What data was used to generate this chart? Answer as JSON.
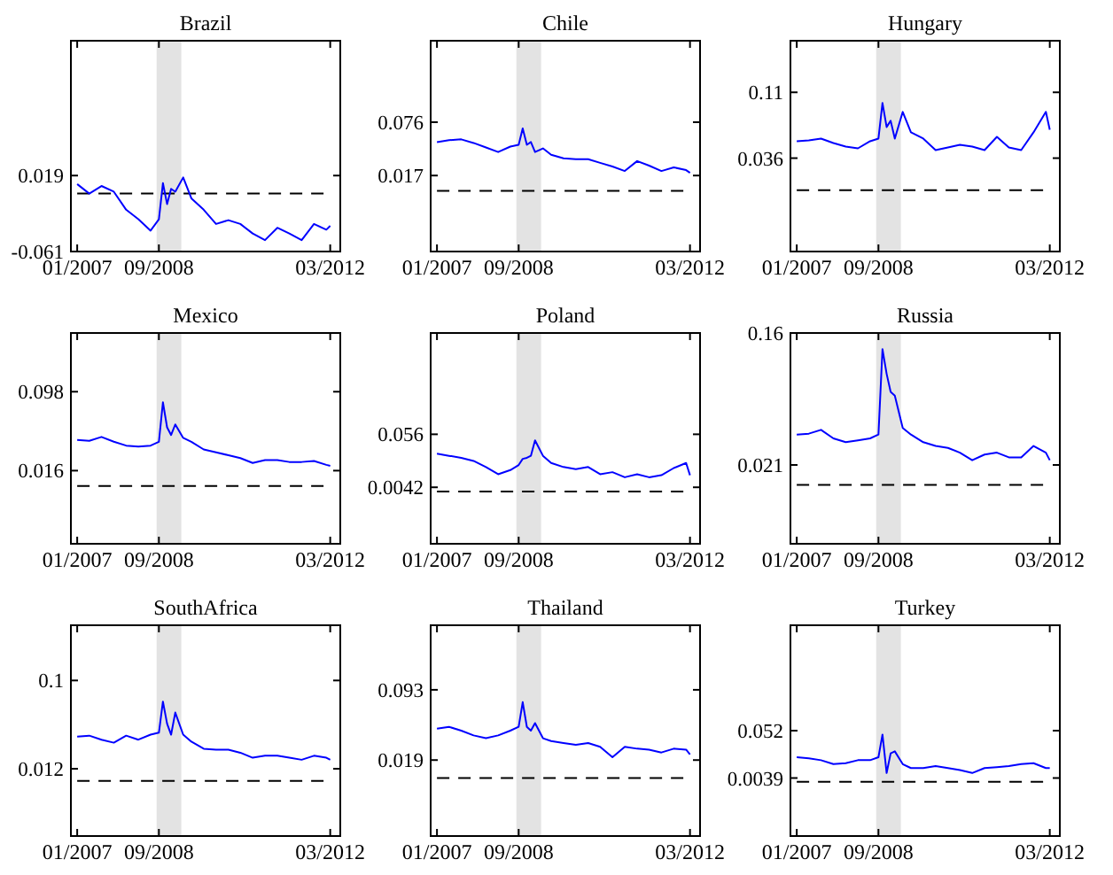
{
  "chart_data": [
    {
      "type": "line",
      "title": "Brazil",
      "x": [
        "2007-01",
        "2007-04",
        "2007-07",
        "2007-10",
        "2008-01",
        "2008-04",
        "2008-07",
        "2008-09",
        "2008-10",
        "2008-11",
        "2008-12",
        "2009-01",
        "2009-03",
        "2009-05",
        "2009-08",
        "2009-11",
        "2010-02",
        "2010-05",
        "2010-08",
        "2010-11",
        "2011-02",
        "2011-05",
        "2011-08",
        "2011-11",
        "2012-02",
        "2012-03"
      ],
      "xlim": [
        "2006-11-15",
        "2012-05-15"
      ],
      "xticks": [
        {
          "value": "2007-01",
          "label": "01/2007"
        },
        {
          "value": "2008-09",
          "label": "09/2008"
        },
        {
          "value": "2012-03",
          "label": "03/2012"
        }
      ],
      "ylim": [
        -0.061,
        0.161
      ],
      "yticks": [
        {
          "value": -0.061,
          "label": "-0.061"
        },
        0.019
      ],
      "series": [
        {
          "color": "#0000ff",
          "values": [
            0.01,
            0.0,
            0.008,
            0.002,
            -0.017,
            -0.027,
            -0.039,
            -0.027,
            0.011,
            -0.011,
            0.005,
            0.002,
            0.017,
            -0.005,
            -0.017,
            -0.032,
            -0.028,
            -0.032,
            -0.042,
            -0.049,
            -0.036,
            -0.042,
            -0.049,
            -0.032,
            -0.038,
            -0.034
          ]
        }
      ],
      "bands": [
        {
          "axis": "x",
          "from": "2008-08-15",
          "to": "2009-02-15",
          "color": "#e3e3e3"
        }
      ],
      "ref_lines": [
        {
          "axis": "y",
          "value": 0,
          "color": "#000000",
          "line_style": "dashed"
        }
      ]
    },
    {
      "type": "line",
      "title": "Chile",
      "x": [
        "2007-01",
        "2007-04",
        "2007-07",
        "2007-10",
        "2008-01",
        "2008-04",
        "2008-07",
        "2008-09",
        "2008-10",
        "2008-11",
        "2008-12",
        "2009-01",
        "2009-03",
        "2009-05",
        "2009-08",
        "2009-11",
        "2010-02",
        "2010-05",
        "2010-08",
        "2010-11",
        "2011-02",
        "2011-05",
        "2011-08",
        "2011-11",
        "2012-02",
        "2012-03"
      ],
      "xlim": [
        "2006-11-15",
        "2012-05-15"
      ],
      "xticks": [
        {
          "value": "2007-01",
          "label": "01/2007"
        },
        {
          "value": "2008-09",
          "label": "09/2008"
        },
        {
          "value": "2012-03",
          "label": "03/2012"
        }
      ],
      "ylim": [
        -0.067,
        0.166
      ],
      "yticks": [
        0.017,
        0.076
      ],
      "series": [
        {
          "color": "#0000ff",
          "values": [
            0.054,
            0.056,
            0.057,
            0.053,
            0.048,
            0.043,
            0.049,
            0.051,
            0.069,
            0.051,
            0.054,
            0.043,
            0.047,
            0.04,
            0.036,
            0.035,
            0.035,
            0.031,
            0.027,
            0.022,
            0.033,
            0.028,
            0.022,
            0.026,
            0.023,
            0.02
          ]
        }
      ],
      "bands": [
        {
          "axis": "x",
          "from": "2008-08-15",
          "to": "2009-02-15",
          "color": "#e3e3e3"
        }
      ],
      "ref_lines": [
        {
          "axis": "y",
          "value": 0,
          "color": "#000000",
          "line_style": "dashed"
        }
      ]
    },
    {
      "type": "line",
      "title": "Hungary",
      "x": [
        "2007-01",
        "2007-04",
        "2007-07",
        "2007-10",
        "2008-01",
        "2008-04",
        "2008-07",
        "2008-09",
        "2008-10",
        "2008-11",
        "2008-12",
        "2009-01",
        "2009-03",
        "2009-05",
        "2009-08",
        "2009-11",
        "2010-02",
        "2010-05",
        "2010-08",
        "2010-11",
        "2011-02",
        "2011-05",
        "2011-08",
        "2011-11",
        "2012-02",
        "2012-03"
      ],
      "xlim": [
        "2006-11-15",
        "2012-05-15"
      ],
      "xticks": [
        {
          "value": "2007-01",
          "label": "01/2007"
        },
        {
          "value": "2008-09",
          "label": "09/2008"
        },
        {
          "value": "2012-03",
          "label": "03/2012"
        }
      ],
      "ylim": [
        -0.069,
        0.168
      ],
      "yticks": [
        0.036,
        0.11
      ],
      "series": [
        {
          "color": "#0000ff",
          "values": [
            0.055,
            0.056,
            0.058,
            0.053,
            0.049,
            0.047,
            0.055,
            0.058,
            0.098,
            0.071,
            0.078,
            0.058,
            0.088,
            0.065,
            0.058,
            0.045,
            0.048,
            0.051,
            0.049,
            0.045,
            0.06,
            0.048,
            0.045,
            0.065,
            0.088,
            0.068
          ]
        }
      ],
      "bands": [
        {
          "axis": "x",
          "from": "2008-08-15",
          "to": "2009-02-15",
          "color": "#e3e3e3"
        }
      ],
      "ref_lines": [
        {
          "axis": "y",
          "value": 0,
          "color": "#000000",
          "line_style": "dashed"
        }
      ]
    },
    {
      "type": "line",
      "title": "Mexico",
      "x": [
        "2007-01",
        "2007-04",
        "2007-07",
        "2007-10",
        "2008-01",
        "2008-04",
        "2008-07",
        "2008-09",
        "2008-10",
        "2008-11",
        "2008-12",
        "2009-01",
        "2009-03",
        "2009-05",
        "2009-08",
        "2009-11",
        "2010-02",
        "2010-05",
        "2010-08",
        "2010-11",
        "2011-02",
        "2011-05",
        "2011-08",
        "2011-11",
        "2012-02",
        "2012-03"
      ],
      "xlim": [
        "2006-11-15",
        "2012-05-15"
      ],
      "xticks": [
        {
          "value": "2007-01",
          "label": "01/2007"
        },
        {
          "value": "2008-09",
          "label": "09/2008"
        },
        {
          "value": "2012-03",
          "label": "03/2012"
        }
      ],
      "ylim": [
        -0.06,
        0.159
      ],
      "yticks": [
        0.016,
        0.098
      ],
      "series": [
        {
          "color": "#0000ff",
          "values": [
            0.048,
            0.047,
            0.051,
            0.046,
            0.042,
            0.041,
            0.042,
            0.046,
            0.087,
            0.061,
            0.053,
            0.064,
            0.05,
            0.046,
            0.038,
            0.035,
            0.032,
            0.029,
            0.024,
            0.027,
            0.027,
            0.025,
            0.025,
            0.026,
            0.022,
            0.021
          ]
        }
      ],
      "bands": [
        {
          "axis": "x",
          "from": "2008-08-15",
          "to": "2009-02-15",
          "color": "#e3e3e3"
        }
      ],
      "ref_lines": [
        {
          "axis": "y",
          "value": 0,
          "color": "#000000",
          "line_style": "dashed"
        }
      ]
    },
    {
      "type": "line",
      "title": "Poland",
      "x": [
        "2007-01",
        "2007-04",
        "2007-07",
        "2007-10",
        "2008-01",
        "2008-04",
        "2008-07",
        "2008-09",
        "2008-10",
        "2008-11",
        "2008-12",
        "2009-01",
        "2009-03",
        "2009-05",
        "2009-08",
        "2009-11",
        "2010-02",
        "2010-05",
        "2010-08",
        "2010-11",
        "2011-02",
        "2011-05",
        "2011-08",
        "2011-11",
        "2012-02",
        "2012-03"
      ],
      "xlim": [
        "2006-11-15",
        "2012-05-15"
      ],
      "xticks": [
        {
          "value": "2007-01",
          "label": "01/2007"
        },
        {
          "value": "2008-09",
          "label": "09/2008"
        },
        {
          "value": "2012-03",
          "label": "03/2012"
        }
      ],
      "ylim": [
        -0.051,
        0.155
      ],
      "yticks": [
        0.0042,
        0.056
      ],
      "series": [
        {
          "color": "#0000ff",
          "values": [
            0.037,
            0.035,
            0.033,
            0.03,
            0.024,
            0.017,
            0.021,
            0.026,
            0.032,
            0.033,
            0.035,
            0.05,
            0.035,
            0.028,
            0.024,
            0.022,
            0.024,
            0.017,
            0.019,
            0.014,
            0.017,
            0.014,
            0.016,
            0.023,
            0.028,
            0.016
          ]
        }
      ],
      "bands": [
        {
          "axis": "x",
          "from": "2008-08-15",
          "to": "2009-02-15",
          "color": "#e3e3e3"
        }
      ],
      "ref_lines": [
        {
          "axis": "y",
          "value": 0,
          "color": "#000000",
          "line_style": "dashed"
        }
      ]
    },
    {
      "type": "line",
      "title": "Russia",
      "x": [
        "2007-01",
        "2007-04",
        "2007-07",
        "2007-10",
        "2008-01",
        "2008-04",
        "2008-07",
        "2008-09",
        "2008-10",
        "2008-11",
        "2008-12",
        "2009-01",
        "2009-03",
        "2009-05",
        "2009-08",
        "2009-11",
        "2010-02",
        "2010-05",
        "2010-08",
        "2010-11",
        "2011-02",
        "2011-05",
        "2011-08",
        "2011-11",
        "2012-02",
        "2012-03"
      ],
      "xlim": [
        "2006-11-15",
        "2012-05-15"
      ],
      "xticks": [
        {
          "value": "2007-01",
          "label": "01/2007"
        },
        {
          "value": "2008-09",
          "label": "09/2008"
        },
        {
          "value": "2012-03",
          "label": "03/2012"
        }
      ],
      "ylim": [
        -0.062,
        0.16
      ],
      "yticks": [
        0.021,
        0.16
      ],
      "series": [
        {
          "color": "#0000ff",
          "values": [
            0.053,
            0.054,
            0.058,
            0.049,
            0.045,
            0.047,
            0.049,
            0.053,
            0.143,
            0.117,
            0.098,
            0.094,
            0.06,
            0.053,
            0.045,
            0.041,
            0.039,
            0.034,
            0.026,
            0.032,
            0.034,
            0.029,
            0.029,
            0.041,
            0.034,
            0.026
          ]
        }
      ],
      "bands": [
        {
          "axis": "x",
          "from": "2008-08-15",
          "to": "2009-02-15",
          "color": "#e3e3e3"
        }
      ],
      "ref_lines": [
        {
          "axis": "y",
          "value": 0,
          "color": "#000000",
          "line_style": "dashed"
        }
      ]
    },
    {
      "type": "line",
      "title": "SouthAfrica",
      "x": [
        "2007-01",
        "2007-04",
        "2007-07",
        "2007-10",
        "2008-01",
        "2008-04",
        "2008-07",
        "2008-09",
        "2008-10",
        "2008-11",
        "2008-12",
        "2009-01",
        "2009-03",
        "2009-05",
        "2009-08",
        "2009-11",
        "2010-02",
        "2010-05",
        "2010-08",
        "2010-11",
        "2011-02",
        "2011-05",
        "2011-08",
        "2011-11",
        "2012-02",
        "2012-03"
      ],
      "xlim": [
        "2006-11-15",
        "2012-05-15"
      ],
      "xticks": [
        {
          "value": "2007-01",
          "label": "01/2007"
        },
        {
          "value": "2008-09",
          "label": "09/2008"
        },
        {
          "value": "2012-03",
          "label": "03/2012"
        }
      ],
      "ylim": [
        -0.055,
        0.155
      ],
      "yticks": [
        0.012,
        0.1
      ],
      "series": [
        {
          "color": "#0000ff",
          "values": [
            0.044,
            0.045,
            0.041,
            0.038,
            0.045,
            0.041,
            0.046,
            0.048,
            0.079,
            0.057,
            0.046,
            0.068,
            0.046,
            0.039,
            0.032,
            0.031,
            0.031,
            0.028,
            0.023,
            0.025,
            0.025,
            0.023,
            0.021,
            0.025,
            0.023,
            0.021
          ]
        }
      ],
      "bands": [
        {
          "axis": "x",
          "from": "2008-08-15",
          "to": "2009-02-15",
          "color": "#e3e3e3"
        }
      ],
      "ref_lines": [
        {
          "axis": "y",
          "value": 0,
          "color": "#000000",
          "line_style": "dashed"
        }
      ]
    },
    {
      "type": "line",
      "title": "Thailand",
      "x": [
        "2007-01",
        "2007-04",
        "2007-07",
        "2007-10",
        "2008-01",
        "2008-04",
        "2008-07",
        "2008-09",
        "2008-10",
        "2008-11",
        "2008-12",
        "2009-01",
        "2009-03",
        "2009-05",
        "2009-08",
        "2009-11",
        "2010-02",
        "2010-05",
        "2010-08",
        "2010-11",
        "2011-02",
        "2011-05",
        "2011-08",
        "2011-11",
        "2012-02",
        "2012-03"
      ],
      "xlim": [
        "2006-11-15",
        "2012-05-15"
      ],
      "xticks": [
        {
          "value": "2007-01",
          "label": "01/2007"
        },
        {
          "value": "2008-09",
          "label": "09/2008"
        },
        {
          "value": "2012-03",
          "label": "03/2012"
        }
      ],
      "ylim": [
        -0.061,
        0.161
      ],
      "yticks": [
        0.019,
        0.093
      ],
      "series": [
        {
          "color": "#0000ff",
          "values": [
            0.052,
            0.054,
            0.05,
            0.045,
            0.042,
            0.045,
            0.05,
            0.054,
            0.08,
            0.054,
            0.05,
            0.058,
            0.042,
            0.039,
            0.037,
            0.035,
            0.037,
            0.033,
            0.022,
            0.033,
            0.031,
            0.03,
            0.027,
            0.031,
            0.03,
            0.025
          ]
        }
      ],
      "bands": [
        {
          "axis": "x",
          "from": "2008-08-15",
          "to": "2009-02-15",
          "color": "#e3e3e3"
        }
      ],
      "ref_lines": [
        {
          "axis": "y",
          "value": 0,
          "color": "#000000",
          "line_style": "dashed"
        }
      ]
    },
    {
      "type": "line",
      "title": "Turkey",
      "x": [
        "2007-01",
        "2007-04",
        "2007-07",
        "2007-10",
        "2008-01",
        "2008-04",
        "2008-07",
        "2008-09",
        "2008-10",
        "2008-11",
        "2008-12",
        "2009-01",
        "2009-03",
        "2009-05",
        "2009-08",
        "2009-11",
        "2010-02",
        "2010-05",
        "2010-08",
        "2010-11",
        "2011-02",
        "2011-05",
        "2011-08",
        "2011-11",
        "2012-02",
        "2012-03"
      ],
      "xlim": [
        "2006-11-15",
        "2012-05-15"
      ],
      "xticks": [
        {
          "value": "2007-01",
          "label": "01/2007"
        },
        {
          "value": "2008-09",
          "label": "09/2008"
        },
        {
          "value": "2012-03",
          "label": "03/2012"
        }
      ],
      "ylim": [
        -0.055,
        0.159
      ],
      "yticks": [
        0.0039,
        0.052
      ],
      "series": [
        {
          "color": "#0000ff",
          "values": [
            0.025,
            0.024,
            0.022,
            0.018,
            0.019,
            0.022,
            0.022,
            0.025,
            0.048,
            0.009,
            0.029,
            0.031,
            0.018,
            0.014,
            0.014,
            0.016,
            0.014,
            0.012,
            0.009,
            0.014,
            0.015,
            0.016,
            0.018,
            0.019,
            0.014,
            0.014
          ]
        }
      ],
      "bands": [
        {
          "axis": "x",
          "from": "2008-08-15",
          "to": "2009-02-15",
          "color": "#e3e3e3"
        }
      ],
      "ref_lines": [
        {
          "axis": "y",
          "value": 0,
          "color": "#000000",
          "line_style": "dashed"
        }
      ]
    }
  ]
}
